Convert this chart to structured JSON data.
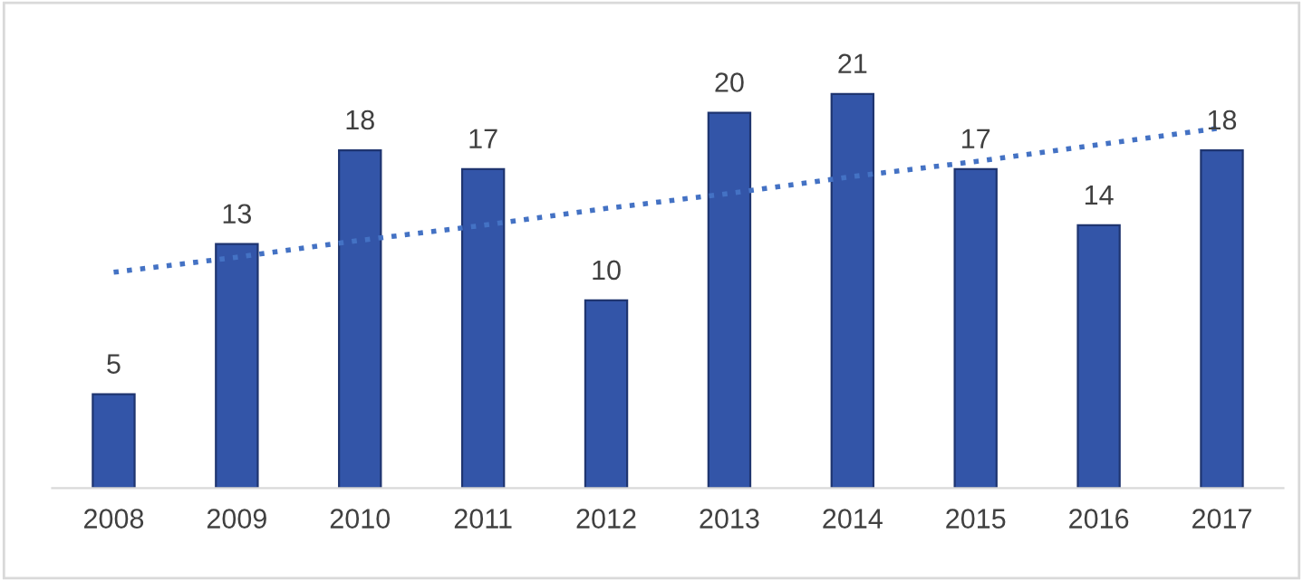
{
  "chart_data": {
    "type": "bar",
    "categories": [
      "2008",
      "2009",
      "2010",
      "2011",
      "2012",
      "2013",
      "2014",
      "2015",
      "2016",
      "2017"
    ],
    "series": [
      {
        "color": "#3355a8",
        "values": [
          5,
          13,
          18,
          17,
          10,
          20,
          21,
          17,
          14,
          18
        ],
        "data_labels": true
      },
      {
        "type": "line",
        "color": "#4472c4",
        "values": [
          11.5,
          12.3,
          13.2,
          14.0,
          14.9,
          15.7,
          16.6,
          17.4,
          18.3,
          19.2
        ],
        "line_style": "dotted"
      }
    ],
    "grid": false,
    "legend": false
  }
}
